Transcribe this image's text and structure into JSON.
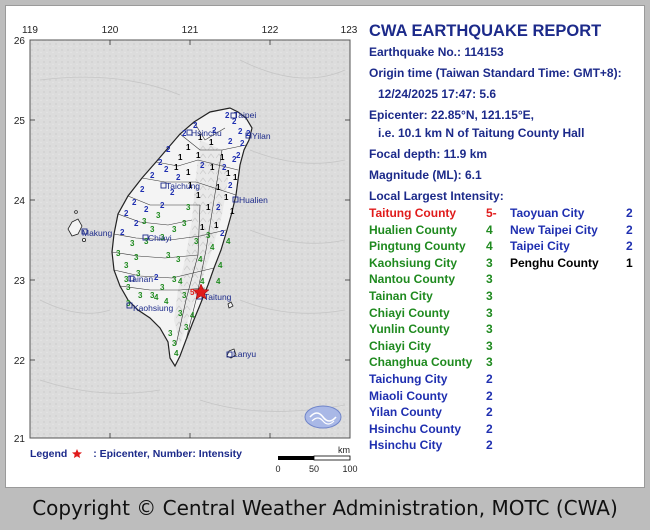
{
  "report": {
    "title": "CWA EARTHQUAKE REPORT",
    "number_line": "Earthquake No.: 114153",
    "origin_label": "Origin time (Taiwan Standard Time: GMT+8):",
    "origin_value": "12/24/2025 17:47: 5.6",
    "epicenter_line": "Epicenter: 22.85°N, 121.15°E,",
    "epicenter_desc": "i.e. 10.1 km N of Taitung County Hall",
    "depth_line": "Focal depth: 11.9 km",
    "magnitude_line": "Magnitude (ML): 6.1",
    "intensity_label": "Local Largest Intensity:"
  },
  "intensity_list_left": [
    {
      "name": "Taitung County",
      "value": "5-",
      "color": "#e01b1b"
    },
    {
      "name": "Hualien County",
      "value": "4",
      "color": "#1f8a1f"
    },
    {
      "name": "Pingtung County",
      "value": "4",
      "color": "#1f8a1f"
    },
    {
      "name": "Kaohsiung City",
      "value": "3",
      "color": "#1f8a1f"
    },
    {
      "name": "Nantou County",
      "value": "3",
      "color": "#1f8a1f"
    },
    {
      "name": "Tainan City",
      "value": "3",
      "color": "#1f8a1f"
    },
    {
      "name": "Chiayi County",
      "value": "3",
      "color": "#1f8a1f"
    },
    {
      "name": "Yunlin County",
      "value": "3",
      "color": "#1f8a1f"
    },
    {
      "name": "Chiayi City",
      "value": "3",
      "color": "#1f8a1f"
    },
    {
      "name": "Changhua County",
      "value": "3",
      "color": "#1f8a1f"
    },
    {
      "name": "Taichung City",
      "value": "2",
      "color": "#1f2fb0"
    },
    {
      "name": "Miaoli County",
      "value": "2",
      "color": "#1f2fb0"
    },
    {
      "name": "Yilan County",
      "value": "2",
      "color": "#1f2fb0"
    },
    {
      "name": "Hsinchu County",
      "value": "2",
      "color": "#1f2fb0"
    },
    {
      "name": "Hsinchu City",
      "value": "2",
      "color": "#1f2fb0"
    }
  ],
  "intensity_list_right": [
    {
      "name": "Taoyuan City",
      "value": "2",
      "color": "#1f2fb0"
    },
    {
      "name": "New Taipei City",
      "value": "2",
      "color": "#1f2fb0"
    },
    {
      "name": "Taipei City",
      "value": "2",
      "color": "#1f2fb0"
    },
    {
      "name": "Penghu County",
      "value": "1",
      "color": "#000000"
    }
  ],
  "map": {
    "lon_ticks": [
      "119",
      "120",
      "121",
      "122",
      "123"
    ],
    "lat_ticks": [
      "26",
      "25",
      "24",
      "23",
      "22",
      "21"
    ],
    "scale_ticks": [
      "0",
      "50",
      "100"
    ],
    "scale_unit": "km",
    "cities": [
      "Taipei",
      "Yilan",
      "Hsinchu",
      "Taichung",
      "Hualien",
      "Makung",
      "Chiayi",
      "Tainan",
      "Kaohsiung",
      "Taitung",
      "Lanyu"
    ],
    "epicenter_intensity": "5-"
  },
  "legend": {
    "label": "Legend",
    "description": ": Epicenter, Number: Intensity"
  },
  "footer": {
    "copyright": "Copyright © Central Weather Administration, MOTC (CWA)"
  },
  "colors": {
    "title": "#1c2a8a",
    "intensity_5": "#e01b1b",
    "intensity_3_4": "#1f8a1f",
    "intensity_2": "#1f2fb0",
    "intensity_1": "#000000",
    "land": "#f2f2f2",
    "sea": "#dedede"
  }
}
